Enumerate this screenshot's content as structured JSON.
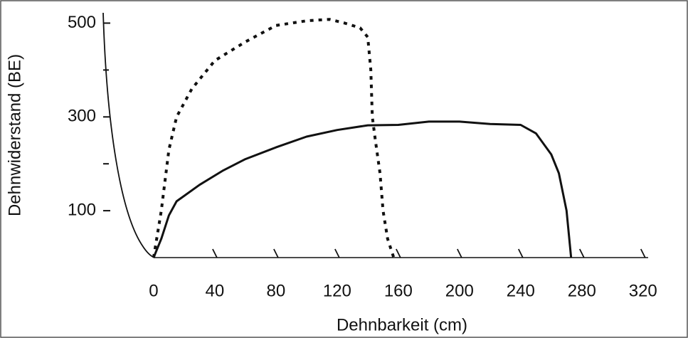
{
  "chart_data": {
    "type": "line",
    "xlabel": "Dehnbarkeit (cm)",
    "ylabel": "Dehnwiderstand (BE)",
    "xlim": [
      -33,
      335
    ],
    "ylim": [
      0,
      525
    ],
    "xticks": [
      0,
      40,
      80,
      120,
      160,
      200,
      240,
      280,
      320
    ],
    "yticks": [
      100,
      300,
      500
    ],
    "yminorticks": [
      200,
      400
    ],
    "series": [
      {
        "color": "#111111",
        "line_style": "solid",
        "x": [
          0,
          5,
          10,
          15,
          30,
          45,
          60,
          80,
          100,
          120,
          140,
          160,
          180,
          200,
          220,
          240,
          250,
          260,
          265,
          270,
          273
        ],
        "values": [
          0,
          40,
          90,
          120,
          155,
          185,
          210,
          235,
          258,
          272,
          282,
          283,
          290,
          290,
          285,
          283,
          265,
          220,
          180,
          100,
          0
        ]
      },
      {
        "color": "#111111",
        "line_style": "dotted",
        "x": [
          0,
          5,
          10,
          15,
          25,
          40,
          60,
          80,
          100,
          115,
          125,
          135,
          140,
          142,
          143,
          145,
          148,
          150,
          153,
          157
        ],
        "values": [
          0,
          100,
          230,
          300,
          360,
          420,
          460,
          495,
          505,
          508,
          500,
          490,
          470,
          400,
          300,
          250,
          180,
          100,
          40,
          0
        ]
      }
    ]
  }
}
